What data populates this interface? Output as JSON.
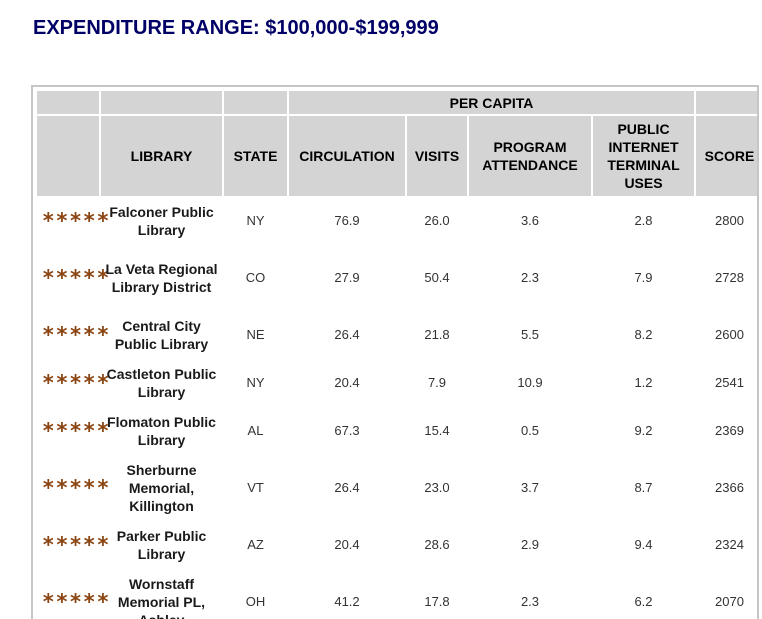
{
  "page": {
    "title": "EXPENDITURE RANGE: $100,000-$199,999"
  },
  "table": {
    "group_header": "PER CAPITA",
    "columns": {
      "rating": "",
      "library": "LIBRARY",
      "state": "STATE",
      "circulation": "CIRCULATION",
      "visits": "VISITS",
      "program_attendance": "PROGRAM ATTENDANCE",
      "internet_uses": "PUBLIC INTERNET TERMINAL USES",
      "score": "SCORE"
    },
    "rows": [
      {
        "stars": "*****",
        "library": "Falconer Public Library",
        "state": "NY",
        "circulation": "76.9",
        "visits": "26.0",
        "program_attendance": "3.6",
        "internet_uses": "2.8",
        "score": "2800"
      },
      {
        "stars": "*****",
        "library": "La Veta Regional Library District",
        "state": "CO",
        "circulation": "27.9",
        "visits": "50.4",
        "program_attendance": "2.3",
        "internet_uses": "7.9",
        "score": "2728"
      },
      {
        "stars": "*****",
        "library": "Central City Public Library",
        "state": "NE",
        "circulation": "26.4",
        "visits": "21.8",
        "program_attendance": "5.5",
        "internet_uses": "8.2",
        "score": "2600"
      },
      {
        "stars": "*****",
        "library": "Castleton Public Library",
        "state": "NY",
        "circulation": "20.4",
        "visits": "7.9",
        "program_attendance": "10.9",
        "internet_uses": "1.2",
        "score": "2541"
      },
      {
        "stars": "*****",
        "library": "Flomaton Public Library",
        "state": "AL",
        "circulation": "67.3",
        "visits": "15.4",
        "program_attendance": "0.5",
        "internet_uses": "9.2",
        "score": "2369"
      },
      {
        "stars": "*****",
        "library": "Sherburne Memorial, Killington",
        "state": "VT",
        "circulation": "26.4",
        "visits": "23.0",
        "program_attendance": "3.7",
        "internet_uses": "8.7",
        "score": "2366"
      },
      {
        "stars": "*****",
        "library": "Parker Public Library",
        "state": "AZ",
        "circulation": "20.4",
        "visits": "28.6",
        "program_attendance": "2.9",
        "internet_uses": "9.4",
        "score": "2324"
      },
      {
        "stars": "*****",
        "library": "Wornstaff Memorial PL, Ashley",
        "state": "OH",
        "circulation": "41.2",
        "visits": "17.8",
        "program_attendance": "2.3",
        "internet_uses": "6.2",
        "score": "2070"
      }
    ]
  },
  "colors": {
    "title": "#000066",
    "header_bg": "#d4d4d4",
    "stars": "#8b4513",
    "border": "#c6c6c6"
  }
}
